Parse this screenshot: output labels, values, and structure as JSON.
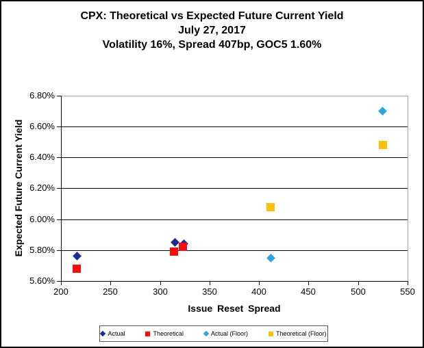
{
  "title": {
    "line1": "CPX: Theoretical vs Expected Future Current Yield",
    "line2": "July 27, 2017",
    "line3": "Volatility 16%, Spread 407bp, GOC5 1.60%"
  },
  "chart_data": {
    "type": "scatter",
    "title": "CPX: Theoretical vs Expected Future Current Yield",
    "subtitle1": "July 27, 2017",
    "subtitle2": "Volatility 16%, Spread 407bp, GOC5 1.60%",
    "xlabel": "Issue Reset Spread",
    "ylabel": "Expected Future Current Yield",
    "xlim": [
      200,
      550
    ],
    "ylim": [
      5.6,
      6.8
    ],
    "xticks": [
      200,
      250,
      300,
      350,
      400,
      450,
      500,
      550
    ],
    "yticks": [
      5.6,
      5.8,
      6.0,
      6.2,
      6.4,
      6.6,
      6.8
    ],
    "ytick_labels": [
      "5.60%",
      "5.80%",
      "6.00%",
      "6.20%",
      "6.40%",
      "6.60%",
      "6.80%"
    ],
    "grid": "horizontal-major",
    "legend_position": "bottom",
    "series": [
      {
        "name": "Actual",
        "marker": "diamond",
        "color": "#1B2B8D",
        "points": [
          [
            216,
            5.76
          ],
          [
            315,
            5.85
          ],
          [
            324,
            5.84
          ]
        ]
      },
      {
        "name": "Theoretical",
        "marker": "square",
        "color": "#FB0B0B",
        "points": [
          [
            216,
            5.68
          ],
          [
            314,
            5.79
          ],
          [
            323,
            5.82
          ]
        ]
      },
      {
        "name": "Actual (Floor)",
        "marker": "diamond",
        "color": "#2BA6E0",
        "points": [
          [
            412,
            5.75
          ],
          [
            525,
            6.7
          ]
        ]
      },
      {
        "name": "Theoretical (Floor)",
        "marker": "square",
        "color": "#FFC008",
        "points": [
          [
            412,
            6.08
          ],
          [
            525,
            6.48
          ]
        ]
      }
    ],
    "colors": {
      "axis": "#000000",
      "gridline": "#000000",
      "plot_border": "#A6A6A6",
      "legend_border": "#5A5A5A",
      "text": "#000000"
    }
  }
}
